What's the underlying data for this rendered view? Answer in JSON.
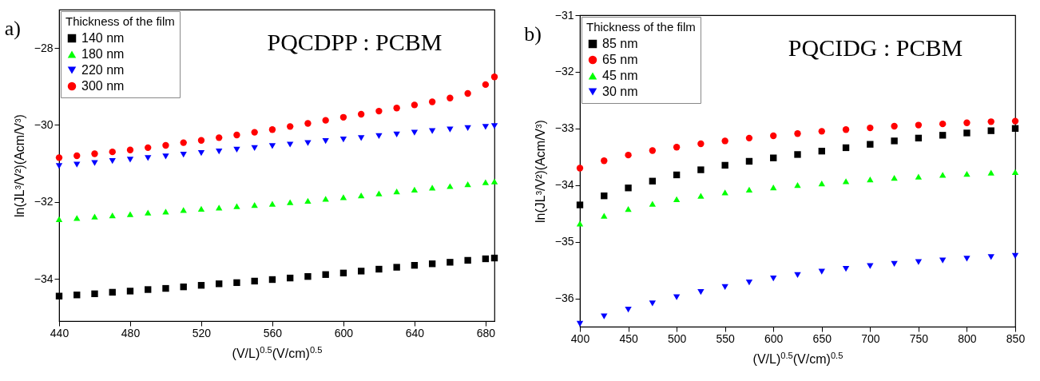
{
  "chart_data": [
    {
      "type": "scatter",
      "title": "PQCDPP : PCBM",
      "annotations": [
        "a)"
      ],
      "xlabel": "(V/L)$^{0.5}$(V/cm)$^{0.5}$",
      "ylabel": "ln(JL³/V²)(Acm/V³)",
      "xlim": [
        440,
        685
      ],
      "ylim": [
        -35.1,
        -27.0
      ],
      "xticks": [
        440,
        480,
        520,
        560,
        600,
        640,
        680
      ],
      "yticks": [
        -34,
        -32,
        -30,
        -28
      ],
      "legend": "top left",
      "legend_title": "Thickness of the film",
      "series": [
        {
          "name": "140 nm",
          "color": "#000000",
          "marker": "square",
          "x": [
            440,
            450,
            460,
            470,
            480,
            490,
            500,
            510,
            520,
            530,
            540,
            550,
            560,
            570,
            580,
            590,
            600,
            610,
            620,
            630,
            640,
            650,
            660,
            670,
            680,
            685
          ],
          "values": [
            -34.45,
            -34.42,
            -34.39,
            -34.35,
            -34.32,
            -34.28,
            -34.25,
            -34.21,
            -34.17,
            -34.13,
            -34.1,
            -34.06,
            -34.02,
            -33.98,
            -33.94,
            -33.89,
            -33.85,
            -33.8,
            -33.75,
            -33.7,
            -33.65,
            -33.61,
            -33.57,
            -33.52,
            -33.48,
            -33.46
          ]
        },
        {
          "name": "180 nm",
          "color": "#00ff00",
          "marker": "triangle",
          "x": [
            440,
            450,
            460,
            470,
            480,
            490,
            500,
            510,
            520,
            530,
            540,
            550,
            560,
            570,
            580,
            590,
            600,
            610,
            620,
            630,
            640,
            650,
            660,
            670,
            680,
            685
          ],
          "values": [
            -32.45,
            -32.42,
            -32.38,
            -32.35,
            -32.32,
            -32.28,
            -32.25,
            -32.21,
            -32.18,
            -32.15,
            -32.11,
            -32.08,
            -32.05,
            -32.01,
            -31.97,
            -31.92,
            -31.88,
            -31.83,
            -31.78,
            -31.73,
            -31.68,
            -31.63,
            -31.59,
            -31.54,
            -31.49,
            -31.47
          ]
        },
        {
          "name": "220 nm",
          "color": "#0000ff",
          "marker": "triangle-down",
          "x": [
            440,
            450,
            460,
            470,
            480,
            490,
            500,
            510,
            520,
            530,
            540,
            550,
            560,
            570,
            580,
            590,
            600,
            610,
            620,
            630,
            640,
            650,
            660,
            670,
            680,
            685
          ],
          "values": [
            -31.07,
            -31.03,
            -30.99,
            -30.94,
            -30.9,
            -30.86,
            -30.82,
            -30.77,
            -30.73,
            -30.69,
            -30.64,
            -30.6,
            -30.55,
            -30.51,
            -30.47,
            -30.42,
            -30.38,
            -30.34,
            -30.29,
            -30.25,
            -30.2,
            -30.16,
            -30.12,
            -30.08,
            -30.05,
            -30.03
          ]
        },
        {
          "name": "300 nm",
          "color": "#ff0000",
          "marker": "circle",
          "x": [
            440,
            450,
            460,
            470,
            480,
            490,
            500,
            510,
            520,
            530,
            540,
            550,
            560,
            570,
            580,
            590,
            600,
            610,
            620,
            630,
            640,
            650,
            660,
            670,
            680,
            685
          ],
          "values": [
            -30.85,
            -30.8,
            -30.75,
            -30.7,
            -30.65,
            -30.59,
            -30.53,
            -30.46,
            -30.4,
            -30.33,
            -30.26,
            -30.19,
            -30.12,
            -30.04,
            -29.96,
            -29.88,
            -29.8,
            -29.72,
            -29.64,
            -29.56,
            -29.48,
            -29.4,
            -29.3,
            -29.18,
            -28.95,
            -28.75
          ]
        }
      ]
    },
    {
      "type": "scatter",
      "title": "PQCIDG : PCBM",
      "annotations": [
        "b)"
      ],
      "xlabel": "(V/L)$^{0.5}$(V/cm)$^{0.5}$",
      "ylabel": "ln(JL³/V²)(Acm/V³)",
      "xlim": [
        400,
        850
      ],
      "ylim": [
        -36.5,
        -31
      ],
      "xticks": [
        400,
        450,
        500,
        550,
        600,
        650,
        700,
        750,
        800,
        850
      ],
      "yticks": [
        -36,
        -35,
        -34,
        -33,
        -32,
        -31
      ],
      "legend": "top left",
      "legend_title": "Thickness of the film",
      "series": [
        {
          "name": "85 nm",
          "color": "#000000",
          "marker": "square",
          "x": [
            400,
            425,
            450,
            475,
            500,
            525,
            550,
            575,
            600,
            625,
            650,
            675,
            700,
            725,
            750,
            775,
            800,
            825,
            850
          ],
          "values": [
            -34.35,
            -34.19,
            -34.05,
            -33.93,
            -33.82,
            -33.73,
            -33.65,
            -33.58,
            -33.52,
            -33.46,
            -33.4,
            -33.34,
            -33.28,
            -33.22,
            -33.17,
            -33.12,
            -33.08,
            -33.04,
            -33.0
          ]
        },
        {
          "name": "65 nm",
          "color": "#ff0000",
          "marker": "circle",
          "x": [
            400,
            425,
            450,
            475,
            500,
            525,
            550,
            575,
            600,
            625,
            650,
            675,
            700,
            725,
            750,
            775,
            800,
            825,
            850
          ],
          "values": [
            -33.7,
            -33.57,
            -33.47,
            -33.39,
            -33.33,
            -33.27,
            -33.22,
            -33.17,
            -33.13,
            -33.09,
            -33.05,
            -33.02,
            -32.99,
            -32.96,
            -32.94,
            -32.92,
            -32.9,
            -32.88,
            -32.87
          ]
        },
        {
          "name": "45 nm",
          "color": "#00ff00",
          "marker": "triangle",
          "x": [
            400,
            425,
            450,
            475,
            500,
            525,
            550,
            575,
            600,
            625,
            650,
            675,
            700,
            725,
            750,
            775,
            800,
            825,
            850
          ],
          "values": [
            -34.68,
            -34.54,
            -34.42,
            -34.33,
            -34.25,
            -34.19,
            -34.13,
            -34.08,
            -34.04,
            -34.0,
            -33.97,
            -33.93,
            -33.9,
            -33.87,
            -33.85,
            -33.82,
            -33.8,
            -33.78,
            -33.77
          ]
        },
        {
          "name": "30 nm",
          "color": "#0000ff",
          "marker": "triangle-down",
          "x": [
            400,
            425,
            450,
            475,
            500,
            525,
            550,
            575,
            600,
            625,
            650,
            675,
            700,
            725,
            750,
            775,
            800,
            825,
            850
          ],
          "values": [
            -36.45,
            -36.32,
            -36.2,
            -36.09,
            -35.98,
            -35.89,
            -35.8,
            -35.72,
            -35.65,
            -35.59,
            -35.53,
            -35.48,
            -35.43,
            -35.39,
            -35.36,
            -35.33,
            -35.3,
            -35.27,
            -35.25
          ]
        }
      ]
    }
  ]
}
